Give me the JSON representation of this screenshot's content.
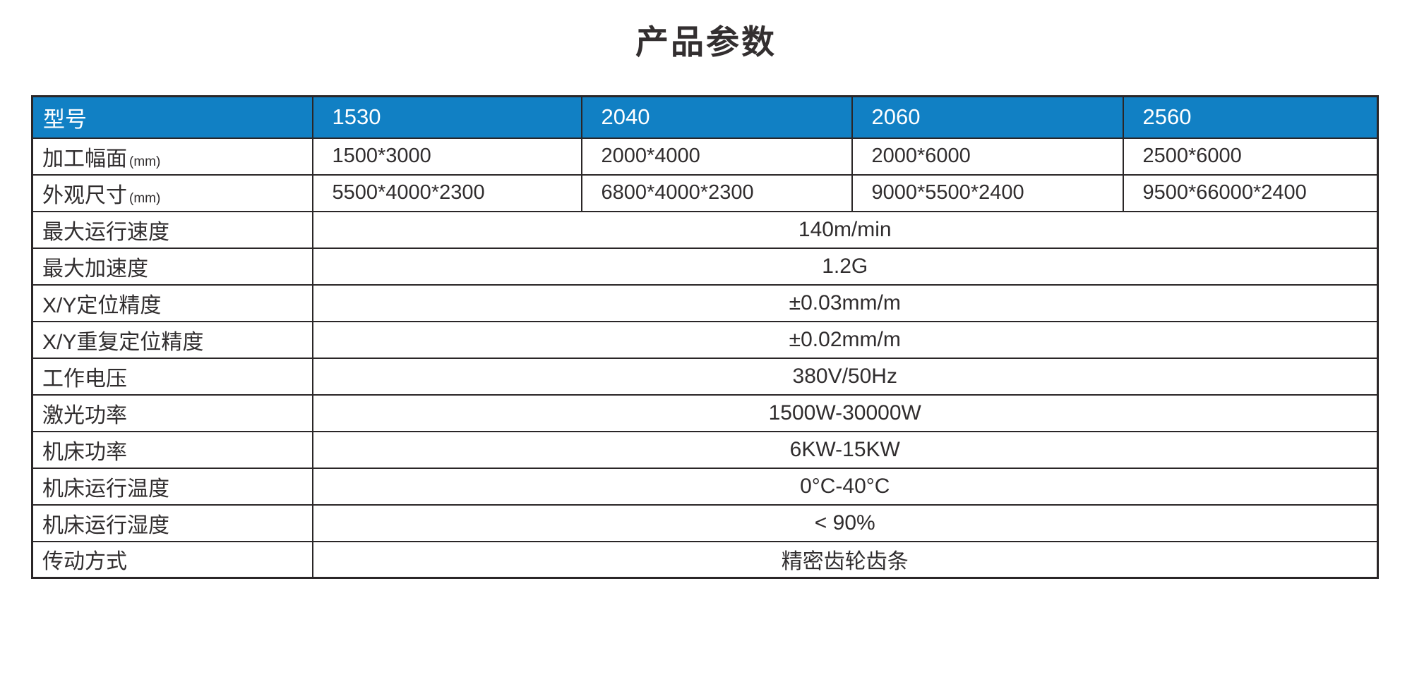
{
  "page": {
    "title": "产品参数"
  },
  "table": {
    "header": {
      "label": "型号",
      "models": [
        "1530",
        "2040",
        "2060",
        "2560"
      ]
    },
    "split_rows": [
      {
        "label": "加工幅面",
        "suffix": "(mm)",
        "values": [
          "1500*3000",
          "2000*4000",
          "2000*6000",
          "2500*6000"
        ]
      },
      {
        "label": "外观尺寸",
        "suffix": "(mm)",
        "values": [
          "5500*4000*2300",
          "6800*4000*2300",
          "9000*5500*2400",
          "9500*66000*2400"
        ]
      }
    ],
    "merged_rows": [
      {
        "label": "最大运行速度",
        "value": "140m/min"
      },
      {
        "label": "最大加速度",
        "value": "1.2G"
      },
      {
        "label": "X/Y定位精度",
        "value": "±0.03mm/m"
      },
      {
        "label": "X/Y重复定位精度",
        "value": "±0.02mm/m"
      },
      {
        "label": "工作电压",
        "value": "380V/50Hz"
      },
      {
        "label": "激光功率",
        "value": "1500W-30000W"
      },
      {
        "label": "机床功率",
        "value": "6KW-15KW"
      },
      {
        "label": "机床运行温度",
        "value": "0°C-40°C"
      },
      {
        "label": "机床运行湿度",
        "value": "< 90%"
      },
      {
        "label": "传动方式",
        "value": "精密齿轮齿条"
      }
    ],
    "colors": {
      "header_bg": "#1180C4",
      "header_text": "#FFFFFF",
      "border": "#2A2627",
      "body_text": "#302D2E"
    }
  }
}
